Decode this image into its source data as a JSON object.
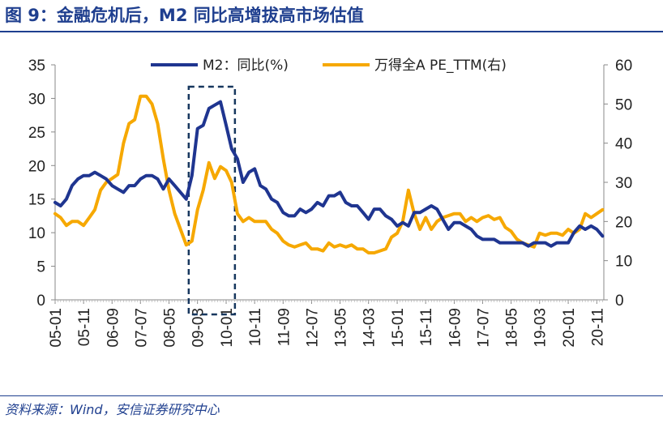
{
  "header": {
    "title": "图 9：金融危机后，M2 同比高增拔高市场估值"
  },
  "footer": {
    "source": "资料来源：Wind，安信证券研究中心"
  },
  "colors": {
    "m2": "#1F3590",
    "pe": "#F6A800",
    "brand": "#1F3F8F",
    "highlight_box": "#17375E"
  },
  "chart_data": {
    "type": "line",
    "x_tick_labels": [
      "05-01",
      "05-11",
      "06-09",
      "07-07",
      "08-05",
      "09-03",
      "10-01",
      "10-11",
      "11-09",
      "12-07",
      "13-05",
      "14-03",
      "15-01",
      "15-11",
      "16-09",
      "17-07",
      "18-05",
      "19-03",
      "20-01",
      "20-11"
    ],
    "left_axis": {
      "ylim": [
        0,
        35
      ],
      "ticks": [
        "0",
        "5",
        "10",
        "15",
        "20",
        "25",
        "30",
        "35"
      ]
    },
    "right_axis": {
      "ylim": [
        0,
        60
      ],
      "ticks": [
        "0",
        "10",
        "20",
        "30",
        "40",
        "50",
        "60"
      ]
    },
    "legend_position": "top",
    "highlight": {
      "x_range": [
        "2009-01",
        "2010-03"
      ],
      "style": "dashed-box"
    },
    "series": [
      {
        "name": "M2：同比(%)",
        "axis": "left",
        "points": [
          [
            "2005-01",
            14.5
          ],
          [
            "2005-03",
            14.0
          ],
          [
            "2005-05",
            15.0
          ],
          [
            "2005-07",
            17.0
          ],
          [
            "2005-09",
            18.0
          ],
          [
            "2005-11",
            18.5
          ],
          [
            "2006-01",
            18.5
          ],
          [
            "2006-03",
            19.0
          ],
          [
            "2006-05",
            18.5
          ],
          [
            "2006-07",
            18.0
          ],
          [
            "2006-09",
            17.0
          ],
          [
            "2006-11",
            16.5
          ],
          [
            "2007-01",
            16.0
          ],
          [
            "2007-03",
            17.0
          ],
          [
            "2007-05",
            17.0
          ],
          [
            "2007-07",
            18.0
          ],
          [
            "2007-09",
            18.5
          ],
          [
            "2007-11",
            18.5
          ],
          [
            "2008-01",
            18.0
          ],
          [
            "2008-03",
            16.5
          ],
          [
            "2008-05",
            18.0
          ],
          [
            "2008-07",
            17.0
          ],
          [
            "2008-09",
            16.0
          ],
          [
            "2008-11",
            15.0
          ],
          [
            "2009-01",
            18.5
          ],
          [
            "2009-03",
            25.5
          ],
          [
            "2009-05",
            26.0
          ],
          [
            "2009-07",
            28.5
          ],
          [
            "2009-09",
            29.0
          ],
          [
            "2009-11",
            29.5
          ],
          [
            "2010-01",
            26.0
          ],
          [
            "2010-03",
            22.5
          ],
          [
            "2010-05",
            21.0
          ],
          [
            "2010-07",
            17.5
          ],
          [
            "2010-09",
            19.0
          ],
          [
            "2010-11",
            19.5
          ],
          [
            "2011-01",
            17.0
          ],
          [
            "2011-03",
            16.5
          ],
          [
            "2011-05",
            15.0
          ],
          [
            "2011-07",
            14.5
          ],
          [
            "2011-09",
            13.0
          ],
          [
            "2011-11",
            12.5
          ],
          [
            "2012-01",
            12.5
          ],
          [
            "2012-03",
            13.5
          ],
          [
            "2012-05",
            13.0
          ],
          [
            "2012-07",
            13.5
          ],
          [
            "2012-09",
            14.5
          ],
          [
            "2012-11",
            14.0
          ],
          [
            "2013-01",
            15.5
          ],
          [
            "2013-03",
            15.5
          ],
          [
            "2013-05",
            16.0
          ],
          [
            "2013-07",
            14.5
          ],
          [
            "2013-09",
            14.0
          ],
          [
            "2013-11",
            14.0
          ],
          [
            "2014-01",
            13.0
          ],
          [
            "2014-03",
            12.0
          ],
          [
            "2014-05",
            13.5
          ],
          [
            "2014-07",
            13.5
          ],
          [
            "2014-09",
            12.5
          ],
          [
            "2014-11",
            12.0
          ],
          [
            "2015-01",
            11.0
          ],
          [
            "2015-03",
            11.5
          ],
          [
            "2015-05",
            11.0
          ],
          [
            "2015-07",
            13.0
          ],
          [
            "2015-09",
            13.0
          ],
          [
            "2015-11",
            13.5
          ],
          [
            "2016-01",
            14.0
          ],
          [
            "2016-03",
            13.5
          ],
          [
            "2016-05",
            12.0
          ],
          [
            "2016-07",
            10.5
          ],
          [
            "2016-09",
            11.5
          ],
          [
            "2016-11",
            11.5
          ],
          [
            "2017-01",
            11.0
          ],
          [
            "2017-03",
            10.5
          ],
          [
            "2017-05",
            9.5
          ],
          [
            "2017-07",
            9.0
          ],
          [
            "2017-09",
            9.0
          ],
          [
            "2017-11",
            9.0
          ],
          [
            "2018-01",
            8.5
          ],
          [
            "2018-03",
            8.5
          ],
          [
            "2018-05",
            8.5
          ],
          [
            "2018-07",
            8.5
          ],
          [
            "2018-09",
            8.5
          ],
          [
            "2018-11",
            8.0
          ],
          [
            "2019-01",
            8.5
          ],
          [
            "2019-03",
            8.5
          ],
          [
            "2019-05",
            8.5
          ],
          [
            "2019-07",
            8.0
          ],
          [
            "2019-09",
            8.5
          ],
          [
            "2019-11",
            8.5
          ],
          [
            "2020-01",
            8.5
          ],
          [
            "2020-03",
            10.0
          ],
          [
            "2020-05",
            11.0
          ],
          [
            "2020-07",
            10.5
          ],
          [
            "2020-09",
            11.0
          ],
          [
            "2020-11",
            10.5
          ],
          [
            "2021-01",
            9.5
          ]
        ]
      },
      {
        "name": "万得全A PE_TTM(右)",
        "axis": "right",
        "points": [
          [
            "2005-01",
            22
          ],
          [
            "2005-03",
            21
          ],
          [
            "2005-05",
            19
          ],
          [
            "2005-07",
            20
          ],
          [
            "2005-09",
            20
          ],
          [
            "2005-11",
            19
          ],
          [
            "2006-01",
            21
          ],
          [
            "2006-03",
            23
          ],
          [
            "2006-05",
            28
          ],
          [
            "2006-07",
            30
          ],
          [
            "2006-09",
            31
          ],
          [
            "2006-11",
            32
          ],
          [
            "2007-01",
            40
          ],
          [
            "2007-03",
            45
          ],
          [
            "2007-05",
            46
          ],
          [
            "2007-07",
            52
          ],
          [
            "2007-09",
            52
          ],
          [
            "2007-11",
            50
          ],
          [
            "2008-01",
            45
          ],
          [
            "2008-03",
            36
          ],
          [
            "2008-05",
            28
          ],
          [
            "2008-07",
            22
          ],
          [
            "2008-09",
            18
          ],
          [
            "2008-11",
            14
          ],
          [
            "2009-01",
            15
          ],
          [
            "2009-03",
            23
          ],
          [
            "2009-05",
            28
          ],
          [
            "2009-07",
            35
          ],
          [
            "2009-09",
            31
          ],
          [
            "2009-11",
            34
          ],
          [
            "2010-01",
            33
          ],
          [
            "2010-03",
            30
          ],
          [
            "2010-05",
            22
          ],
          [
            "2010-07",
            20
          ],
          [
            "2010-09",
            21
          ],
          [
            "2010-11",
            20
          ],
          [
            "2011-01",
            20
          ],
          [
            "2011-03",
            20
          ],
          [
            "2011-05",
            18
          ],
          [
            "2011-07",
            17
          ],
          [
            "2011-09",
            15
          ],
          [
            "2011-11",
            14
          ],
          [
            "2012-01",
            13.5
          ],
          [
            "2012-03",
            14
          ],
          [
            "2012-05",
            14.5
          ],
          [
            "2012-07",
            13
          ],
          [
            "2012-09",
            13
          ],
          [
            "2012-11",
            12.5
          ],
          [
            "2013-01",
            14.5
          ],
          [
            "2013-03",
            13.5
          ],
          [
            "2013-05",
            14
          ],
          [
            "2013-07",
            13.5
          ],
          [
            "2013-09",
            14
          ],
          [
            "2013-11",
            13
          ],
          [
            "2014-01",
            13
          ],
          [
            "2014-03",
            12
          ],
          [
            "2014-05",
            12
          ],
          [
            "2014-07",
            12.5
          ],
          [
            "2014-09",
            13
          ],
          [
            "2014-11",
            16
          ],
          [
            "2015-01",
            17
          ],
          [
            "2015-03",
            20
          ],
          [
            "2015-05",
            28
          ],
          [
            "2015-07",
            22
          ],
          [
            "2015-09",
            18
          ],
          [
            "2015-11",
            21
          ],
          [
            "2016-01",
            18
          ],
          [
            "2016-03",
            20
          ],
          [
            "2016-05",
            21
          ],
          [
            "2016-07",
            21.5
          ],
          [
            "2016-09",
            22
          ],
          [
            "2016-11",
            22
          ],
          [
            "2017-01",
            20
          ],
          [
            "2017-03",
            21
          ],
          [
            "2017-05",
            20
          ],
          [
            "2017-07",
            21
          ],
          [
            "2017-09",
            21.5
          ],
          [
            "2017-11",
            20.5
          ],
          [
            "2018-01",
            21
          ],
          [
            "2018-03",
            18.5
          ],
          [
            "2018-05",
            17.5
          ],
          [
            "2018-07",
            15.5
          ],
          [
            "2018-09",
            14.5
          ],
          [
            "2018-11",
            14
          ],
          [
            "2019-01",
            13.5
          ],
          [
            "2019-03",
            17
          ],
          [
            "2019-05",
            16.5
          ],
          [
            "2019-07",
            17
          ],
          [
            "2019-09",
            17
          ],
          [
            "2019-11",
            16.5
          ],
          [
            "2020-01",
            18
          ],
          [
            "2020-03",
            17
          ],
          [
            "2020-05",
            18
          ],
          [
            "2020-07",
            22
          ],
          [
            "2020-09",
            21
          ],
          [
            "2020-11",
            22
          ],
          [
            "2021-01",
            23
          ]
        ]
      }
    ]
  }
}
